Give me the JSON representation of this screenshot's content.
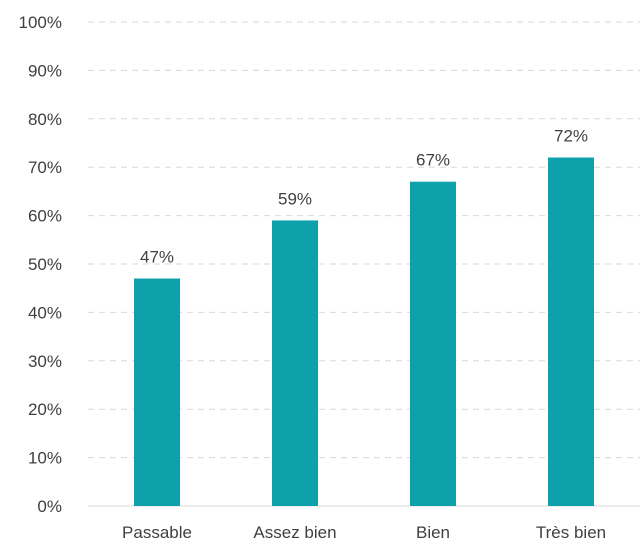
{
  "chart_data": {
    "type": "bar",
    "categories": [
      "Passable",
      "Assez bien",
      "Bien",
      "Très bien"
    ],
    "values": [
      47,
      59,
      67,
      72
    ],
    "data_labels": [
      "47%",
      "59%",
      "67%",
      "72%"
    ],
    "title": "",
    "xlabel": "",
    "ylabel": "",
    "ylim": [
      0,
      100
    ],
    "y_ticks": [
      "0%",
      "10%",
      "20%",
      "30%",
      "40%",
      "50%",
      "60%",
      "70%",
      "80%",
      "90%",
      "100%"
    ],
    "grid": true,
    "legend": "none",
    "bar_color": "#0ea1ac"
  }
}
